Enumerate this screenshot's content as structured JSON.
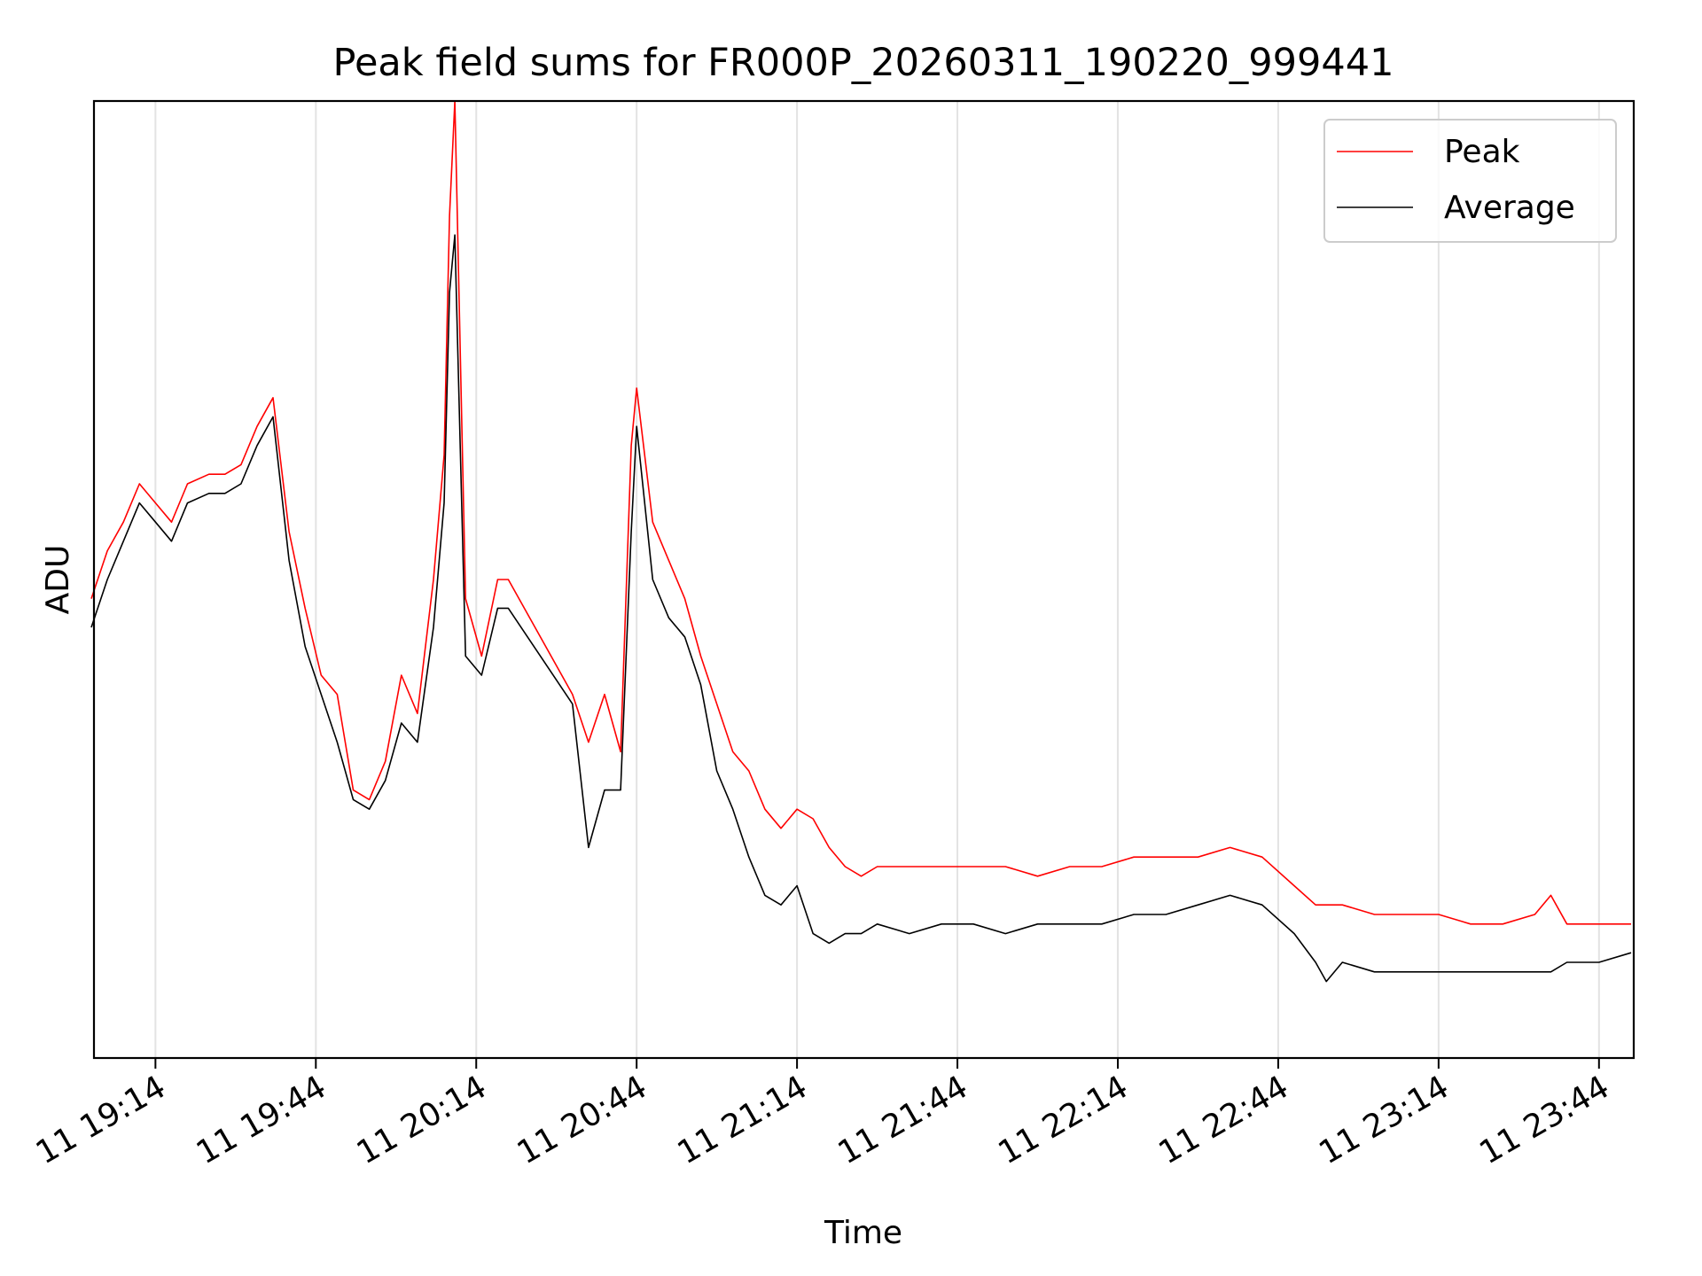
{
  "chart_data": {
    "type": "line",
    "title": "Peak field sums for FR000P_20260311_190220_999441",
    "xlabel": "Time",
    "ylabel": "ADU",
    "x_range": [
      "2026-03-11T19:02:30",
      "2026-03-11T23:50:30"
    ],
    "ylim": [
      0,
      100
    ],
    "y_ticks_shown": false,
    "grid": "vertical",
    "legend_position": "top-right",
    "x_tick_labels": [
      "11 19:14",
      "11 19:44",
      "11 20:14",
      "11 20:44",
      "11 21:14",
      "11 21:44",
      "11 22:14",
      "11 22:44",
      "11 23:14",
      "11 23:44"
    ],
    "series_key": [
      {
        "name": "Peak",
        "color": "#ff0000"
      },
      {
        "name": "Average",
        "color": "#000000"
      }
    ],
    "x": [
      "19:02",
      "19:05",
      "19:08",
      "19:11",
      "19:14",
      "19:17",
      "19:20",
      "19:24",
      "19:27",
      "19:30",
      "19:33",
      "19:36",
      "19:39",
      "19:42",
      "19:45",
      "19:48",
      "19:51",
      "19:54",
      "19:57",
      "20:00",
      "20:03",
      "20:06",
      "20:08",
      "20:09",
      "20:10",
      "20:12",
      "20:15",
      "20:18",
      "20:20",
      "20:32",
      "20:35",
      "20:38",
      "20:41",
      "20:43",
      "20:44",
      "20:47",
      "20:50",
      "20:53",
      "20:56",
      "20:59",
      "21:02",
      "21:05",
      "21:08",
      "21:11",
      "21:14",
      "21:17",
      "21:20",
      "21:23",
      "21:26",
      "21:29",
      "21:35",
      "21:41",
      "21:47",
      "21:53",
      "21:59",
      "22:05",
      "22:11",
      "22:17",
      "22:23",
      "22:29",
      "22:35",
      "22:41",
      "22:47",
      "22:51",
      "22:53",
      "22:56",
      "23:02",
      "23:08",
      "23:14",
      "23:20",
      "23:26",
      "23:32",
      "23:35",
      "23:38",
      "23:44",
      "23:50"
    ],
    "series": [
      {
        "name": "Peak",
        "color": "#ff0000",
        "values": [
          48,
          53,
          56,
          60,
          58,
          56,
          60,
          61,
          61,
          62,
          66,
          69,
          55,
          47,
          40,
          38,
          28,
          27,
          31,
          40,
          36,
          50,
          63,
          88,
          100,
          48,
          42,
          50,
          50,
          38,
          33,
          38,
          32,
          64,
          70,
          56,
          52,
          48,
          42,
          37,
          32,
          30,
          26,
          24,
          26,
          25,
          22,
          20,
          19,
          20,
          20,
          20,
          20,
          20,
          19,
          20,
          20,
          21,
          21,
          21,
          22,
          21,
          18,
          16,
          16,
          16,
          15,
          15,
          15,
          14,
          14,
          15,
          17,
          14,
          14,
          14
        ]
      },
      {
        "name": "Average",
        "color": "#000000",
        "values": [
          45,
          50,
          54,
          58,
          56,
          54,
          58,
          59,
          59,
          60,
          64,
          67,
          52,
          43,
          38,
          33,
          27,
          26,
          29,
          35,
          33,
          45,
          58,
          80,
          86,
          42,
          40,
          47,
          47,
          37,
          22,
          28,
          28,
          55,
          66,
          50,
          46,
          44,
          39,
          30,
          26,
          21,
          17,
          16,
          18,
          13,
          12,
          13,
          13,
          14,
          13,
          14,
          14,
          13,
          14,
          14,
          14,
          15,
          15,
          16,
          17,
          16,
          13,
          10,
          8,
          10,
          9,
          9,
          9,
          9,
          9,
          9,
          9,
          10,
          10,
          11
        ]
      }
    ]
  }
}
